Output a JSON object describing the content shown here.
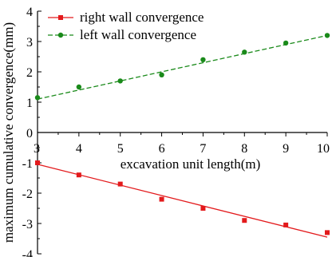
{
  "chart_data": {
    "type": "scatter",
    "title": "",
    "xlabel": "excavation unit length(m)",
    "ylabel": "maximum cumulative convergence(mm)",
    "xlim": [
      3,
      10
    ],
    "ylim": [
      -4,
      4
    ],
    "x_ticks": [
      "3",
      "4",
      "5",
      "6",
      "7",
      "8",
      "9",
      "10"
    ],
    "y_ticks": [
      "4",
      "3",
      "2",
      "1",
      "0",
      "-1",
      "-2",
      "-3",
      "-4"
    ],
    "legend_position": "top-left",
    "grid": false,
    "series": [
      {
        "name": "right wall convergence",
        "marker": "square",
        "color": "#e31a1c",
        "line_style": "solid",
        "points": [
          {
            "x": 3,
            "y": -1.0
          },
          {
            "x": 4,
            "y": -1.4
          },
          {
            "x": 5,
            "y": -1.7
          },
          {
            "x": 6,
            "y": -2.2
          },
          {
            "x": 7,
            "y": -2.5
          },
          {
            "x": 8,
            "y": -2.9
          },
          {
            "x": 9,
            "y": -3.05
          },
          {
            "x": 10,
            "y": -3.3
          }
        ],
        "fit": {
          "x": [
            3,
            10
          ],
          "y": [
            -1.05,
            -3.45
          ]
        }
      },
      {
        "name": "left wall convergence",
        "marker": "circle",
        "color": "#1a8a1a",
        "line_style": "dashed",
        "points": [
          {
            "x": 3,
            "y": 1.15
          },
          {
            "x": 4,
            "y": 1.5
          },
          {
            "x": 5,
            "y": 1.7
          },
          {
            "x": 6,
            "y": 1.9
          },
          {
            "x": 7,
            "y": 2.4
          },
          {
            "x": 8,
            "y": 2.65
          },
          {
            "x": 9,
            "y": 2.95
          },
          {
            "x": 10,
            "y": 3.2
          }
        ],
        "fit": {
          "x": [
            3,
            10
          ],
          "y": [
            1.1,
            3.2
          ]
        }
      }
    ]
  }
}
